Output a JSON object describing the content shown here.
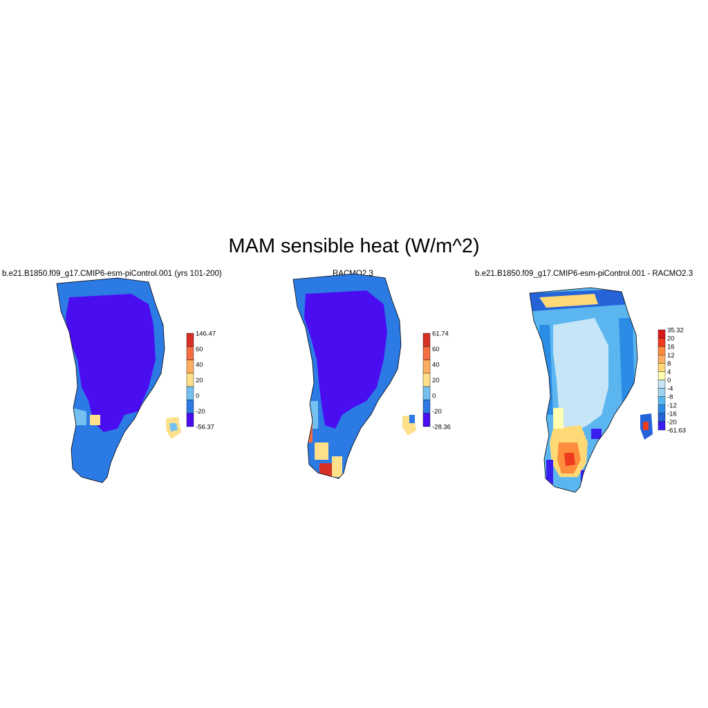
{
  "title": "MAM sensible heat (W/m^2)",
  "panels": [
    {
      "id": "model",
      "title": "b.e21.B1850.f09_g17.CMIP6-esm-piControl.001 (yrs 101-200)",
      "colorbar": {
        "labels": [
          "146.47",
          "60",
          "40",
          "20",
          "0",
          "-20",
          "-56.37"
        ],
        "colors": [
          "#d73027",
          "#f46d43",
          "#fdae61",
          "#fee08b",
          "#74c0f0",
          "#2c7be5",
          "#4a0df0"
        ]
      }
    },
    {
      "id": "racmo",
      "title": "RACMO2.3",
      "colorbar": {
        "labels": [
          "61.74",
          "60",
          "40",
          "20",
          "0",
          "-20",
          "-28.36"
        ],
        "colors": [
          "#d73027",
          "#f46d43",
          "#fdae61",
          "#fee08b",
          "#74c0f0",
          "#2c7be5",
          "#4a0df0"
        ]
      }
    },
    {
      "id": "difference",
      "title": "b.e21.B1850.f09_g17.CMIP6-esm-piControl.001 - RACMO2.3",
      "colorbar": {
        "labels": [
          "35.32",
          "20",
          "16",
          "12",
          "8",
          "4",
          "0",
          "-4",
          "-8",
          "-12",
          "-16",
          "-20",
          "-61.63"
        ],
        "colors": [
          "#d7191c",
          "#f03b20",
          "#fd8d3c",
          "#fdae61",
          "#fed976",
          "#ffffb2",
          "#c6e6f7",
          "#9fd3f2",
          "#5bb6ef",
          "#2b8ce6",
          "#2563d9",
          "#3a1ef0"
        ]
      }
    }
  ]
}
